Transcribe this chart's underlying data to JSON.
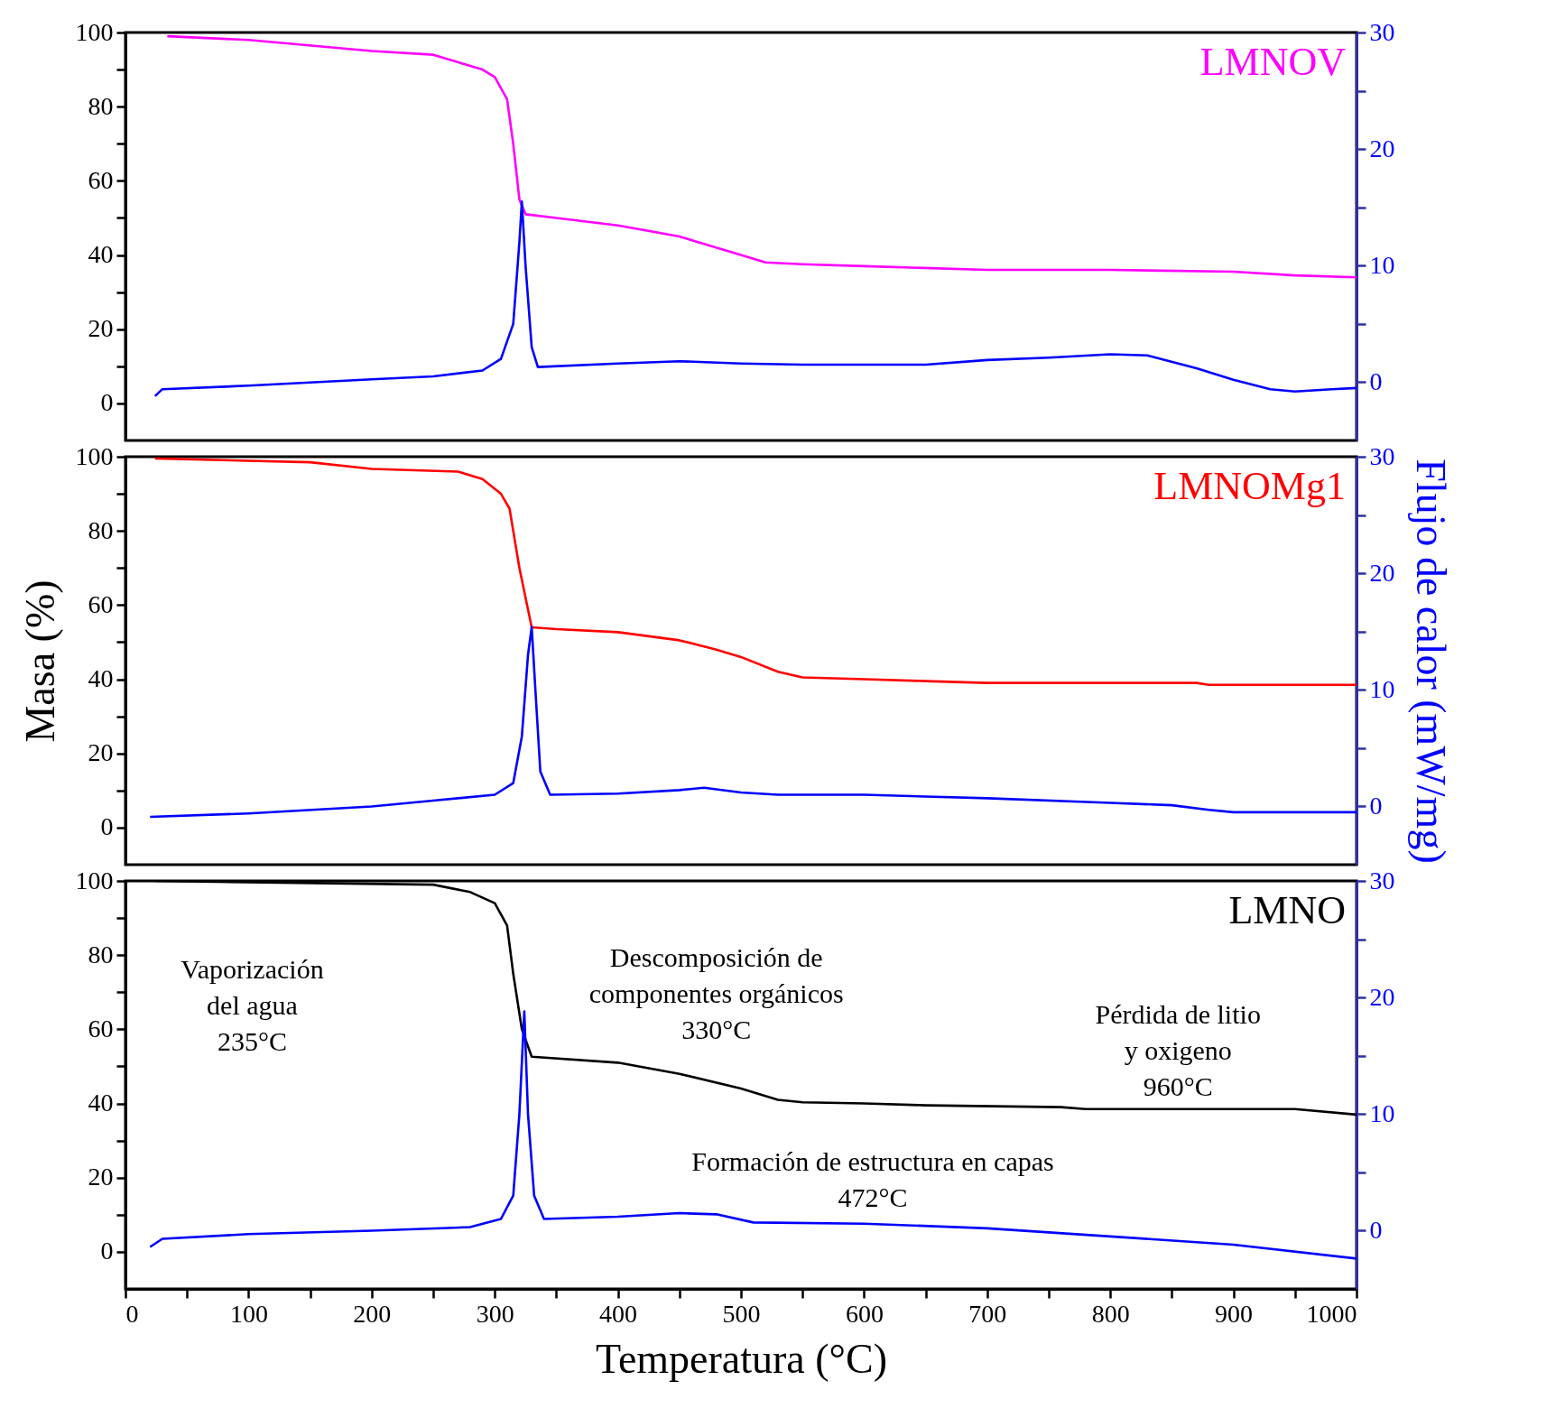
{
  "chart_data": [
    {
      "type": "line",
      "xlim": [
        0,
        1000
      ],
      "ylim": [
        -10,
        100
      ],
      "y2lim": [
        -5,
        30
      ],
      "tick_labels": "y",
      "grid": false,
      "line_style": "solid",
      "yticks": [
        0,
        {
          "value": 10,
          "label": null
        },
        20,
        {
          "value": 30,
          "label": null
        },
        40,
        {
          "value": 50,
          "label": null
        },
        60,
        {
          "value": 70,
          "label": null
        },
        80,
        {
          "value": 90,
          "label": null
        },
        100
      ],
      "y2ticks": [
        0,
        {
          "value": 5,
          "label": null
        },
        10,
        {
          "value": 15,
          "label": null
        },
        20,
        {
          "value": 25,
          "label": null
        },
        30
      ],
      "series": [
        {
          "name": "LMNOV",
          "color": "#ff00ff",
          "x": [
            34,
            100,
            200,
            250,
            290,
            300,
            310,
            315,
            320,
            325,
            350,
            400,
            450,
            500,
            520,
            550,
            600,
            700,
            800,
            900,
            950,
            1000
          ],
          "values": [
            99,
            98,
            95,
            94,
            90,
            88,
            82,
            70,
            55,
            51,
            50,
            48,
            45,
            40,
            38,
            37.5,
            37,
            36,
            36,
            35.5,
            34.5,
            34
          ]
        },
        {
          "color": "#0000ff",
          "axis": "y2",
          "x": [
            24,
            30,
            100,
            200,
            250,
            290,
            305,
            315,
            320,
            322,
            325,
            330,
            335,
            400,
            450,
            500,
            550,
            650,
            700,
            750,
            800,
            830,
            870,
            900,
            930,
            950,
            980,
            1000
          ],
          "values": [
            -1.2,
            -0.6,
            -0.3,
            0.25,
            0.5,
            1.0,
            2,
            5,
            12,
            15.5,
            10,
            3,
            1.3,
            1.6,
            1.8,
            1.6,
            1.5,
            1.5,
            1.9,
            2.1,
            2.4,
            2.3,
            1.2,
            0.2,
            -0.6,
            -0.8,
            -0.6,
            -0.5
          ]
        }
      ]
    },
    {
      "type": "line",
      "xlim": [
        0,
        1000
      ],
      "ylim": [
        -10,
        100
      ],
      "y2lim": [
        -5,
        30
      ],
      "tick_labels": "y",
      "grid": false,
      "line_style": "solid",
      "ylabel": "Masa (%)",
      "y2label": "Flujo de calor (mW/mg)",
      "yticks": [
        0,
        {
          "value": 10,
          "label": null
        },
        20,
        {
          "value": 30,
          "label": null
        },
        40,
        {
          "value": 50,
          "label": null
        },
        60,
        {
          "value": 70,
          "label": null
        },
        80,
        {
          "value": 90,
          "label": null
        },
        100
      ],
      "y2ticks": [
        0,
        {
          "value": 5,
          "label": null
        },
        10,
        {
          "value": 15,
          "label": null
        },
        20,
        {
          "value": 25,
          "label": null
        },
        30
      ],
      "series": [
        {
          "name": "LMNOMg1",
          "color": "#ff0000",
          "x": [
            24,
            150,
            200,
            270,
            290,
            305,
            312,
            320,
            330,
            350,
            400,
            450,
            480,
            500,
            530,
            550,
            600,
            650,
            700,
            870,
            880,
            1000
          ],
          "values": [
            99.5,
            98.5,
            96.7,
            96,
            94,
            90,
            86,
            70,
            54,
            53.5,
            52.7,
            50.5,
            48,
            46,
            42,
            40.5,
            40,
            39.5,
            39,
            39,
            38.5,
            38.5
          ]
        },
        {
          "color": "#0000ff",
          "axis": "y2",
          "x": [
            20,
            100,
            200,
            250,
            300,
            315,
            322,
            327,
            330,
            333,
            337,
            345,
            400,
            450,
            470,
            500,
            530,
            600,
            700,
            800,
            850,
            880,
            900,
            1000
          ],
          "values": [
            -0.9,
            -0.6,
            0,
            0.5,
            1.0,
            2,
            6,
            13,
            15.4,
            10,
            3,
            1.0,
            1.1,
            1.4,
            1.6,
            1.2,
            1.0,
            1.0,
            0.7,
            0.3,
            0.1,
            -0.3,
            -0.5,
            -0.5
          ]
        }
      ]
    },
    {
      "type": "line",
      "xlim": [
        0,
        1000
      ],
      "ylim": [
        -10,
        100
      ],
      "y2lim": [
        -5,
        30
      ],
      "grid": false,
      "line_style": "solid",
      "xlabel": "Temperatura (°C)",
      "xticks": [
        0,
        {
          "value": 50,
          "label": null
        },
        100,
        {
          "value": 150,
          "label": null
        },
        200,
        {
          "value": 250,
          "label": null
        },
        300,
        {
          "value": 350,
          "label": null
        },
        400,
        {
          "value": 450,
          "label": null
        },
        500,
        {
          "value": 550,
          "label": null
        },
        600,
        {
          "value": 650,
          "label": null
        },
        700,
        {
          "value": 750,
          "label": null
        },
        800,
        {
          "value": 850,
          "label": null
        },
        900,
        {
          "value": 950,
          "label": null
        },
        1000
      ],
      "yticks": [
        0,
        {
          "value": 10,
          "label": null
        },
        20,
        {
          "value": 30,
          "label": null
        },
        40,
        {
          "value": 50,
          "label": null
        },
        60,
        {
          "value": 70,
          "label": null
        },
        80,
        {
          "value": 90,
          "label": null
        },
        100
      ],
      "y2ticks": [
        0,
        {
          "value": 5,
          "label": null
        },
        10,
        {
          "value": 15,
          "label": null
        },
        20,
        {
          "value": 25,
          "label": null
        },
        30
      ],
      "annotations": [
        "Vaporización\ndel agua\n235°C",
        "Descomposición de\ncomponentes orgánicos\n330°C",
        "Pérdida de litio\ny oxigeno\n960°C",
        "Formación de  estructura en  capas\n472°C"
      ],
      "series": [
        {
          "name": "LMNO",
          "color": "#000000",
          "x": [
            24,
            250,
            280,
            300,
            310,
            315,
            322,
            330,
            400,
            450,
            500,
            530,
            550,
            600,
            650,
            760,
            780,
            950,
            1000
          ],
          "values": [
            100,
            99,
            97,
            94,
            88,
            75,
            60,
            52.6,
            51,
            48,
            44,
            41,
            40.3,
            40,
            39.5,
            39,
            38.5,
            38.5,
            37
          ]
        },
        {
          "color": "#0000ff",
          "axis": "y2",
          "x": [
            20,
            30,
            100,
            200,
            280,
            305,
            315,
            320,
            324,
            327,
            332,
            340,
            400,
            450,
            480,
            510,
            600,
            700,
            800,
            900,
            1000
          ],
          "values": [
            -1.4,
            -0.7,
            -0.3,
            0,
            0.3,
            1.0,
            3,
            10,
            18.8,
            10,
            3,
            1.0,
            1.2,
            1.5,
            1.4,
            0.7,
            0.6,
            0.2,
            -0.5,
            -1.2,
            -2.4
          ]
        }
      ]
    }
  ]
}
